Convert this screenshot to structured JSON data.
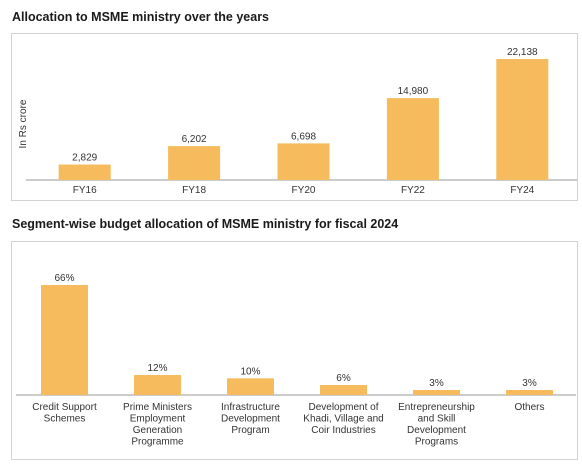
{
  "chart_data": [
    {
      "type": "bar",
      "title": "Allocation to MSME ministry over the years",
      "ylabel": "In Rs crore",
      "xlabel": "",
      "categories": [
        "FY16",
        "FY18",
        "FY20",
        "FY22",
        "FY24"
      ],
      "values": [
        2829,
        6202,
        6698,
        14980,
        22138
      ],
      "value_labels": [
        "2,829",
        "6,202",
        "6,698",
        "14,980",
        "22,138"
      ],
      "ylim": [
        0,
        22138
      ],
      "bar_color": "#f5bb5c",
      "grid": false,
      "legend": "none"
    },
    {
      "type": "bar",
      "title": "Segment-wise budget allocation of MSME ministry for fiscal 2024",
      "ylabel": "",
      "xlabel": "",
      "categories": [
        [
          "Credit Support",
          "Schemes"
        ],
        [
          "Prime Ministers",
          "Employment",
          "Generation",
          "Programme"
        ],
        [
          "Infrastructure",
          "Development",
          "Program"
        ],
        [
          "Development of",
          "Khadi, Village and",
          "Coir Industries"
        ],
        [
          "Entrepreneurship",
          "and Skill",
          "Development",
          "Programs"
        ],
        [
          "Others"
        ]
      ],
      "values": [
        66,
        12,
        10,
        6,
        3,
        3
      ],
      "value_labels": [
        "66%",
        "12%",
        "10%",
        "6%",
        "3%",
        "3%"
      ],
      "ylim": [
        0,
        66
      ],
      "bar_color": "#f5bb5c",
      "grid": false,
      "legend": "none"
    }
  ]
}
